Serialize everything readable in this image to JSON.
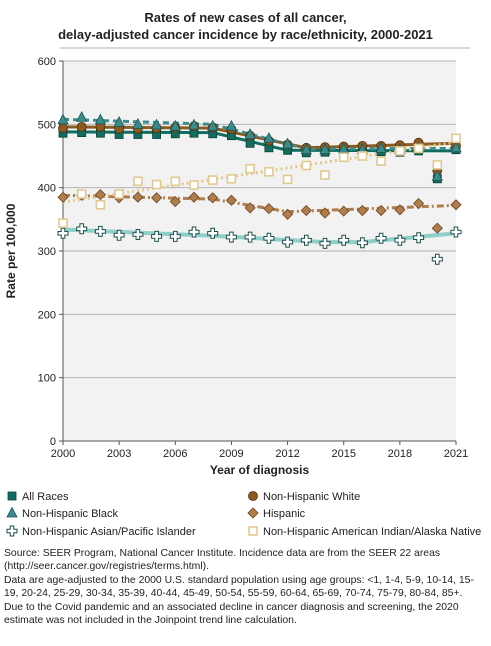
{
  "chart_data": {
    "type": "line",
    "title_lines": [
      "Rates of new cases of all cancer,",
      "delay-adjusted cancer incidence by race/ethnicity, 2000-2021"
    ],
    "xlabel": "Year of diagnosis",
    "ylabel": "Rate per 100,000",
    "ylim": [
      0,
      600
    ],
    "xlim": [
      2000,
      2021
    ],
    "y_ticks": [
      0,
      100,
      200,
      300,
      400,
      500,
      600
    ],
    "x_ticks": [
      2000,
      2003,
      2006,
      2009,
      2012,
      2015,
      2018,
      2021
    ],
    "grid": "horizontal",
    "legend_position": "bottom",
    "x": [
      2000,
      2001,
      2002,
      2003,
      2004,
      2005,
      2006,
      2007,
      2008,
      2009,
      2010,
      2011,
      2012,
      2013,
      2014,
      2015,
      2016,
      2017,
      2018,
      2019,
      2020,
      2021
    ],
    "series": [
      {
        "name": "All Races",
        "marker": "square",
        "color": "#116d5f",
        "line_style": "solid",
        "values": [
          486,
          487,
          486,
          484,
          484,
          484,
          485,
          486,
          485,
          482,
          470,
          463,
          459,
          455,
          456,
          456,
          456,
          457,
          456,
          458,
          414,
          460
        ],
        "trend": [
          [
            2000,
            488
          ],
          [
            2008,
            487
          ],
          [
            2012,
            459
          ],
          [
            2021,
            458
          ]
        ]
      },
      {
        "name": "Non-Hispanic White",
        "marker": "circle",
        "color": "#8b5a1f",
        "line_style": "solid",
        "values": [
          494,
          496,
          496,
          493,
          493,
          494,
          495,
          497,
          495,
          492,
          482,
          474,
          468,
          463,
          464,
          465,
          466,
          466,
          467,
          471,
          427,
          466
        ],
        "trend": [
          [
            2000,
            496
          ],
          [
            2008,
            494
          ],
          [
            2013,
            463
          ],
          [
            2021,
            470
          ]
        ]
      },
      {
        "name": "Non-Hispanic Black",
        "marker": "triangle",
        "color": "#3a8c8c",
        "line_style": "dashed",
        "values": [
          507,
          511,
          507,
          503,
          500,
          499,
          497,
          499,
          497,
          497,
          484,
          478,
          469,
          460,
          460,
          461,
          460,
          462,
          460,
          462,
          418,
          463
        ],
        "trend": [
          [
            2000,
            508
          ],
          [
            2008,
            500
          ],
          [
            2013,
            461
          ],
          [
            2021,
            462
          ]
        ]
      },
      {
        "name": "Hispanic",
        "marker": "diamond",
        "color": "#b07d4c",
        "line_style": "dashdot",
        "values": [
          385,
          388,
          389,
          384,
          385,
          384,
          378,
          385,
          384,
          380,
          368,
          367,
          358,
          364,
          360,
          363,
          364,
          364,
          365,
          375,
          336,
          373
        ],
        "trend": [
          [
            2000,
            388
          ],
          [
            2008,
            382
          ],
          [
            2012,
            362
          ],
          [
            2021,
            372
          ]
        ]
      },
      {
        "name": "Non-Hispanic Asian/Pacific Islander",
        "marker": "cross",
        "color": "#8fcfca",
        "line_style": "solid",
        "values": [
          328,
          335,
          331,
          325,
          326,
          323,
          323,
          330,
          328,
          322,
          322,
          320,
          314,
          317,
          312,
          317,
          313,
          320,
          317,
          321,
          287,
          330
        ],
        "trend": [
          [
            2000,
            334
          ],
          [
            2008,
            324
          ],
          [
            2014,
            314
          ],
          [
            2016,
            314
          ],
          [
            2021,
            328
          ]
        ]
      },
      {
        "name": "Non-Hispanic American Indian/Alaska Native",
        "marker": "open-square",
        "color": "#e2c98f",
        "line_style": "dotted",
        "values": [
          344,
          390,
          373,
          390,
          410,
          405,
          410,
          404,
          412,
          414,
          430,
          425,
          413,
          435,
          420,
          448,
          450,
          442,
          458,
          462,
          436,
          478
        ],
        "trend": [
          [
            2000,
            377
          ],
          [
            2018,
            458
          ],
          [
            2021,
            472
          ]
        ]
      }
    ]
  },
  "notes": {
    "line1": "Source: SEER Program, National Cancer Institute. Incidence data are from the SEER 22 areas (http://seer.cancer.gov/registries/terms.html).",
    "line2": "Data are age-adjusted to the 2000 U.S. standard population using age groups: <1, 1-4, 5-9, 10-14, 15-19, 20-24, 25-29, 30-34, 35-39, 40-44, 45-49, 50-54, 55-59, 60-64, 65-69, 70-74, 75-79, 80-84, 85+.",
    "line3": "Due to the Covid pandemic and an associated decline in cancer diagnosis and screening, the 2020 estimate was not included in the Joinpoint trend line calculation."
  }
}
